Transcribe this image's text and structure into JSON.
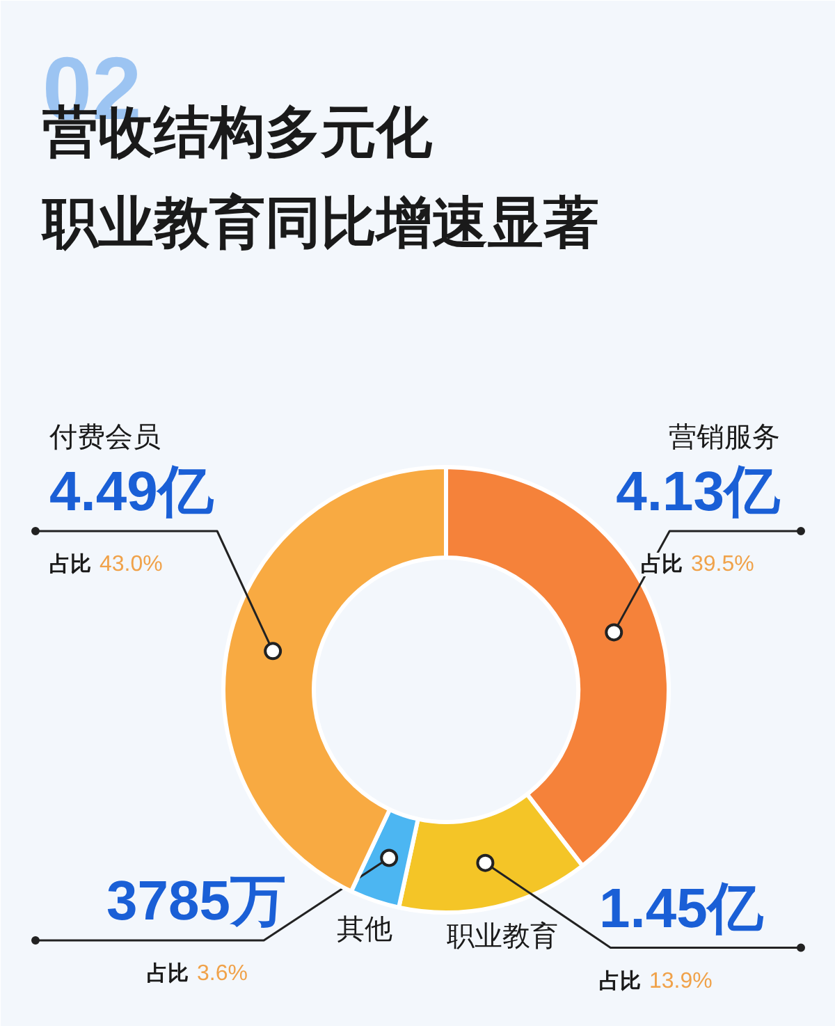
{
  "chart_data": {
    "type": "donut",
    "title": "营收结构多元化",
    "subtitle": "职业教育同比增速显著",
    "categories": [
      "营销服务",
      "职业教育",
      "其他",
      "付费会员"
    ],
    "values": [
      39.5,
      13.9,
      3.6,
      43.0
    ],
    "colors": [
      "#f5823a",
      "#f4c527",
      "#4cb6f2",
      "#f8aa42"
    ],
    "value_labels": [
      "占比 39.5%",
      "占比 13.9%",
      "占比 3.6%",
      "占比 43.0%"
    ],
    "annotations": [
      "4.13亿",
      "1.45亿",
      "3785万",
      "4.49亿",
      "02"
    ]
  }
}
